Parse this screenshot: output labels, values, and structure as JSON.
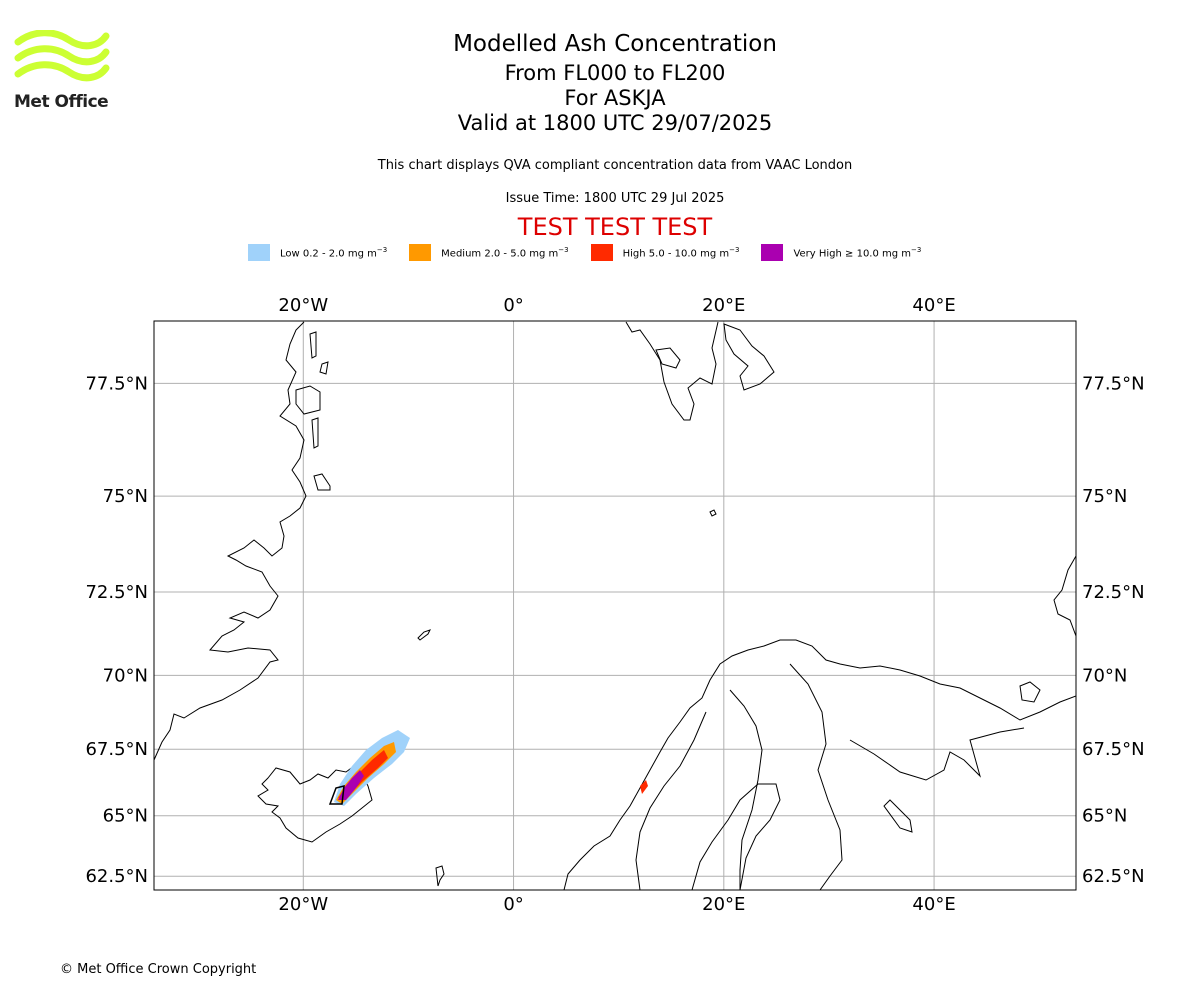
{
  "logo": {
    "text": "Met Office",
    "color": "#ccff33"
  },
  "title": {
    "main": "Modelled Ash Concentration",
    "levels": "From FL000 to FL200",
    "volcano": "For ASKJA",
    "valid": "Valid at 1800 UTC 29/07/2025"
  },
  "subtitle": "This chart displays QVA compliant concentration data from VAAC London",
  "issue_time": "Issue Time: 1800 UTC 29 Jul 2025",
  "test_banner": "TEST TEST TEST",
  "legend": [
    {
      "label": "Low 0.2 - 2.0 mg m",
      "color": "#a0d2fa"
    },
    {
      "label": "Medium 2.0 - 5.0 mg m",
      "color": "#ff9900"
    },
    {
      "label": "High 5.0 - 10.0 mg m",
      "color": "#ff2a00"
    },
    {
      "label": "Very High ≥ 10.0 mg m",
      "color": "#aa00b0"
    }
  ],
  "legend_unit_exp": "−3",
  "map": {
    "lon_range": [
      -34.2,
      53.5
    ],
    "lat_range": [
      61.9,
      78.7
    ],
    "lon_ticks": [
      {
        "value": -20,
        "label": "20°W"
      },
      {
        "value": 0,
        "label": "0°"
      },
      {
        "value": 20,
        "label": "20°E"
      },
      {
        "value": 40,
        "label": "40°E"
      }
    ],
    "lat_ticks": [
      {
        "value": 62.5,
        "label": "62.5°N"
      },
      {
        "value": 65,
        "label": "65°N"
      },
      {
        "value": 67.5,
        "label": "67.5°N"
      },
      {
        "value": 70,
        "label": "70°N"
      },
      {
        "value": 72.5,
        "label": "72.5°N"
      },
      {
        "value": 75,
        "label": "75°N"
      },
      {
        "value": 77.5,
        "label": "77.5°N"
      }
    ],
    "grid": true,
    "gridline_color": "#b0b0b0"
  },
  "copyright": "© Met Office Crown Copyright"
}
